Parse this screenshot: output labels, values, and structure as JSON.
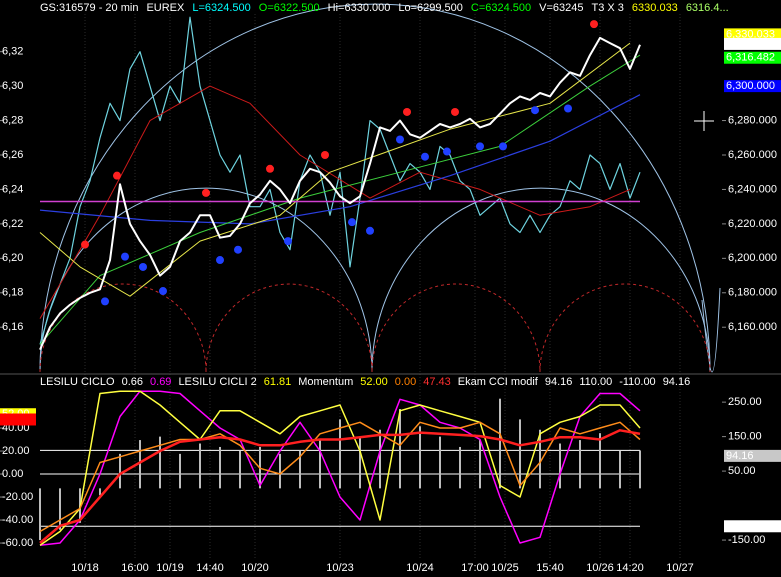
{
  "header": [
    {
      "text": "GS:316579 - 20 min",
      "color": "#ffffff"
    },
    {
      "text": "EUREX",
      "color": "#ffffff"
    },
    {
      "text": "L=6324.500",
      "color": "#00ffff"
    },
    {
      "text": "O=6322.500",
      "color": "#00ff00"
    },
    {
      "text": "Hi=6330.000",
      "color": "#ffffff"
    },
    {
      "text": "Lo=6299.500",
      "color": "#ffffff"
    },
    {
      "text": "C=6324.500",
      "color": "#00ff00"
    },
    {
      "text": "V=63245",
      "color": "#ffffff"
    },
    {
      "text": "T3 X 3",
      "color": "#ffffff"
    },
    {
      "text": "6330.033",
      "color": "#ffff00"
    },
    {
      "text": "6316.4...",
      "color": "#aaff66"
    }
  ],
  "chart_data": [
    {
      "type": "line",
      "xlim": [
        0,
        144
      ],
      "ylim": [
        6134,
        6350
      ],
      "yticks": [
        {
          "value": 6320,
          "label": "6,32"
        },
        {
          "value": 6300,
          "label": "6,30"
        },
        {
          "value": 6280,
          "label": "6,28"
        },
        {
          "value": 6260,
          "label": "6,26"
        },
        {
          "value": 6240,
          "label": "6,24"
        },
        {
          "value": 6220,
          "label": "6,22"
        },
        {
          "value": 6200,
          "label": "6,20"
        },
        {
          "value": 6180,
          "label": "6,18"
        },
        {
          "value": 6160,
          "label": "6,16"
        }
      ],
      "y2lim": [
        6134,
        6350
      ],
      "y2ticks": [
        {
          "value": 6280,
          "label": "6,280.000"
        },
        {
          "value": 6260,
          "label": "6,260.000"
        },
        {
          "value": 6240,
          "label": "6,240.000"
        },
        {
          "value": 6220,
          "label": "6,220.000"
        },
        {
          "value": 6200,
          "label": "6,200.000"
        },
        {
          "value": 6180,
          "label": "6,180.000"
        },
        {
          "value": 6160,
          "label": "6,160.000"
        }
      ],
      "markers": [
        {
          "value": 6330.033,
          "label": "6,330.033",
          "bg": "#ffff00",
          "color": "#000000"
        },
        {
          "value": 6324.5,
          "label": "6,324.500",
          "bg": "#ffffff",
          "color": "#000000"
        },
        {
          "value": 6316.482,
          "label": "6,316.482",
          "bg": "#00ff00",
          "color": "#000000"
        },
        {
          "value": 6300,
          "label": "6,300.000",
          "bg": "#0000ff",
          "color": "#3333ff"
        }
      ],
      "x": [
        8,
        10,
        12,
        14,
        16,
        18,
        20,
        22,
        24,
        26,
        28,
        30,
        32,
        34,
        36,
        38,
        40,
        42,
        44,
        46,
        48,
        50,
        52,
        54,
        56,
        58,
        60,
        62,
        64,
        66,
        68,
        70,
        72,
        74,
        76,
        78,
        80,
        82,
        84,
        86,
        88,
        90,
        92,
        94,
        96,
        98,
        100,
        102,
        104,
        106,
        108,
        110,
        112,
        114,
        116,
        118,
        120,
        122,
        124,
        126,
        128
      ],
      "series": [
        {
          "type": "line",
          "color": "#6ed3df",
          "width": 1.2,
          "values": [
            6150,
            6170,
            6185,
            6200,
            6230,
            6245,
            6270,
            6290,
            6280,
            6310,
            6320,
            6300,
            6280,
            6300,
            6290,
            6340,
            6300,
            6280,
            6260,
            6250,
            6260,
            6230,
            6230,
            6240,
            6215,
            6205,
            6245,
            6260,
            6250,
            6225,
            6250,
            6195,
            6235,
            6280,
            6275,
            6260,
            6245,
            6255,
            6250,
            6240,
            6265,
            6260,
            6245,
            6240,
            6225,
            6230,
            6235,
            6220,
            6215,
            6225,
            6215,
            6225,
            6230,
            6245,
            6240,
            6260,
            6255,
            6240,
            6255,
            6235,
            6250
          ]
        },
        {
          "type": "line",
          "color": "#cc1a1a",
          "width": 1,
          "x": [
            8,
            20,
            30,
            42,
            50,
            60,
            74,
            84,
            96,
            108,
            118,
            126
          ],
          "values": [
            6165,
            6225,
            6280,
            6300,
            6290,
            6260,
            6235,
            6250,
            6240,
            6225,
            6230,
            6240
          ]
        },
        {
          "type": "line",
          "color": "#2b3fe0",
          "width": 1.2,
          "x": [
            8,
            30,
            50,
            70,
            90,
            110,
            128
          ],
          "values": [
            6228,
            6222,
            6220,
            6230,
            6248,
            6268,
            6295
          ]
        },
        {
          "type": "line",
          "color": "#3ccf3c",
          "width": 1,
          "x": [
            8,
            20,
            40,
            60,
            80,
            100,
            118,
            128
          ],
          "values": [
            6150,
            6190,
            6215,
            6235,
            6250,
            6265,
            6300,
            6318
          ]
        },
        {
          "type": "line",
          "color": "#e6e64a",
          "width": 1,
          "x": [
            8,
            16,
            26,
            40,
            56,
            66,
            90,
            110,
            126
          ],
          "values": [
            6215,
            6195,
            6178,
            6210,
            6225,
            6250,
            6275,
            6290,
            6325
          ]
        },
        {
          "type": "line",
          "color": "#d040d0",
          "width": 1.5,
          "x": [
            8,
            128
          ],
          "values": [
            6233,
            6233
          ]
        },
        {
          "type": "line",
          "color": "#ffffff",
          "width": 2,
          "values": [
            6147,
            6160,
            6168,
            6173,
            6177,
            6180,
            6182,
            6199,
            6243,
            6220,
            6210,
            6202,
            6190,
            6195,
            6210,
            6215,
            6225,
            6225,
            6212,
            6213,
            6220,
            6232,
            6237,
            6245,
            6240,
            6232,
            6245,
            6252,
            6250,
            6244,
            6236,
            6232,
            6236,
            6255,
            6276,
            6274,
            6280,
            6272,
            6270,
            6274,
            6278,
            6276,
            6278,
            6281,
            6276,
            6278,
            6284,
            6290,
            6294,
            6292,
            6296,
            6294,
            6302,
            6308,
            6306,
            6318,
            6328,
            6325,
            6322,
            6310,
            6324
          ]
        },
        {
          "type": "scatter",
          "color": "#ff2020",
          "x": [
            17,
            23.4,
            41.2,
            54,
            65,
            81.4,
            91,
            118.8
          ],
          "values": [
            6208,
            6248,
            6238,
            6252,
            6260,
            6285,
            6285,
            6336
          ]
        },
        {
          "type": "scatter",
          "color": "#2040ff",
          "x": [
            21,
            25,
            28.6,
            32.6,
            44,
            47.6,
            57.6,
            70.4,
            74,
            80,
            85,
            89.4,
            96,
            100.6,
            107,
            113.6
          ],
          "values": [
            6175,
            6201,
            6195,
            6181,
            6199,
            6205,
            6210,
            6221,
            6216,
            6269,
            6259,
            6262,
            6265,
            6265,
            6286,
            6287
          ]
        }
      ]
    },
    {
      "type": "line",
      "indicators": [
        {
          "text": "LESILU CICLO",
          "color": "#ffffff"
        },
        {
          "text": "0.66",
          "color": "#ffffff"
        },
        {
          "text": "0.69",
          "color": "#ff00ff"
        },
        {
          "text": "LESILU CICLI 2",
          "color": "#ffffff"
        },
        {
          "text": "61.81",
          "color": "#ffff00"
        },
        {
          "text": "Momentum",
          "color": "#ffffff"
        },
        {
          "text": "52.00",
          "color": "#ffff00"
        },
        {
          "text": "0.00",
          "color": "#ff8000"
        },
        {
          "text": "47.43",
          "color": "#ff3030"
        },
        {
          "text": "Ekam CCI modif",
          "color": "#ffffff"
        },
        {
          "text": "94.16",
          "color": "#ffffff"
        },
        {
          "text": "110.00",
          "color": "#ffffff"
        },
        {
          "text": "-110.00",
          "color": "#ffffff"
        },
        {
          "text": "94.16",
          "color": "#ffffff"
        }
      ],
      "xlim": [
        0,
        144
      ],
      "xticks": [
        {
          "value": 17,
          "label": "10/18"
        },
        {
          "value": 27,
          "label": "16:00"
        },
        {
          "value": 34,
          "label": "10/19"
        },
        {
          "value": 42,
          "label": "14:40"
        },
        {
          "value": 51,
          "label": "10/20"
        },
        {
          "value": 68,
          "label": "10/23"
        },
        {
          "value": 84,
          "label": "10/24"
        },
        {
          "value": 95,
          "label": "17:00"
        },
        {
          "value": 101,
          "label": "10/25"
        },
        {
          "value": 110,
          "label": "15:40"
        },
        {
          "value": 120,
          "label": "10/26"
        },
        {
          "value": 126,
          "label": "14:20"
        },
        {
          "value": 136,
          "label": "10/27"
        }
      ],
      "ylim": [
        -73,
        83.5
      ],
      "yticks": [
        {
          "value": 40,
          "label": "40.00"
        },
        {
          "value": 20,
          "label": "20.00"
        },
        {
          "value": 0,
          "label": "0.00"
        },
        {
          "value": -20,
          "label": "-20.00"
        },
        {
          "value": -40,
          "label": "-40.00"
        },
        {
          "value": -60,
          "label": "-60.00"
        }
      ],
      "y2lim": [
        -202,
        320
      ],
      "y2ticks": [
        {
          "value": 250,
          "label": "250.00"
        },
        {
          "value": 150,
          "label": "150.00"
        },
        {
          "value": 50,
          "label": "50.00"
        },
        {
          "value": -150,
          "label": "-150.00"
        }
      ],
      "levels": [
        0
      ],
      "y2levels": [
        110,
        -110
      ],
      "markers": [
        {
          "value": 52,
          "label": "52.00",
          "bg": "#ffff00",
          "color": "#000000"
        },
        {
          "value": 47.43,
          "bg": "#ff0000"
        }
      ],
      "y2markers": [
        {
          "value": 94.16,
          "label": "94.16",
          "bg": "#c8c8c8",
          "color": "#000000"
        },
        {
          "value": -110,
          "label": "-110.00",
          "bg": "#ffffff",
          "color": "#000000"
        }
      ],
      "x": [
        8,
        12,
        16,
        20,
        24,
        28,
        32,
        36,
        40,
        44,
        48,
        52,
        56,
        60,
        64,
        68,
        72,
        76,
        80,
        84,
        88,
        92,
        96,
        100,
        104,
        108,
        112,
        116,
        120,
        124,
        128
      ],
      "series": [
        {
          "type": "bar",
          "axis": "y2",
          "color": "#bdbdbd",
          "values": [
            -150,
            -120,
            -100,
            -20,
            100,
            140,
            150,
            100,
            130,
            120,
            110,
            120,
            100,
            110,
            140,
            200,
            150,
            170,
            230,
            180,
            150,
            120,
            140,
            260,
            200,
            170,
            130,
            140,
            160,
            110,
            110
          ]
        },
        {
          "type": "line",
          "color": "#ff00ff",
          "width": 1.5,
          "values": [
            -62,
            -60,
            -40,
            0,
            50,
            72,
            72,
            70,
            55,
            40,
            30,
            -10,
            20,
            45,
            20,
            -20,
            -40,
            20,
            65,
            60,
            45,
            40,
            30,
            -20,
            -60,
            -55,
            0,
            50,
            70,
            70,
            55
          ]
        },
        {
          "type": "line",
          "color": "#ffff40",
          "width": 1.5,
          "values": [
            -62,
            -50,
            -30,
            70,
            72,
            72,
            60,
            45,
            30,
            55,
            55,
            45,
            35,
            50,
            55,
            60,
            20,
            -40,
            55,
            60,
            55,
            50,
            45,
            -10,
            -20,
            35,
            45,
            50,
            60,
            60,
            40
          ]
        },
        {
          "type": "line",
          "color": "#ff8c1a",
          "width": 1.5,
          "values": [
            -50,
            -40,
            -30,
            10,
            15,
            20,
            25,
            30,
            30,
            35,
            25,
            5,
            0,
            15,
            35,
            40,
            45,
            35,
            25,
            45,
            40,
            40,
            45,
            35,
            -10,
            10,
            40,
            35,
            40,
            45,
            30
          ]
        },
        {
          "type": "line",
          "color": "#ff2020",
          "width": 2.5,
          "values": [
            -60,
            -45,
            -40,
            -20,
            0,
            10,
            20,
            28,
            30,
            32,
            30,
            25,
            25,
            28,
            30,
            30,
            32,
            34,
            34,
            36,
            35,
            34,
            33,
            30,
            25,
            28,
            32,
            32,
            30,
            38,
            35
          ]
        }
      ]
    }
  ]
}
